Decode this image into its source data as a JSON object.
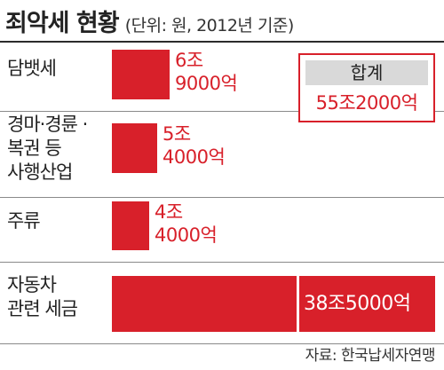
{
  "header": {
    "title": "죄악세 현황",
    "subtitle": "(단위: 원, 2012년 기준)"
  },
  "total": {
    "label": "합계",
    "value": "55조2000억"
  },
  "source": "자료: 한국납세자연맹",
  "colors": {
    "bar": "#d8202a",
    "total_header_bg": "#d9d9d9"
  },
  "chart_data": {
    "type": "bar",
    "orientation": "horizontal",
    "title": "죄악세 현황",
    "subtitle": "(단위: 원, 2012년 기준)",
    "categories": [
      [
        "담뱃세"
      ],
      [
        "경마·경륜 ·",
        "복권 등",
        "사행산업"
      ],
      [
        "주류"
      ],
      [
        "자동차",
        "관련 세금"
      ]
    ],
    "values": [
      69000,
      54000,
      44000,
      385000
    ],
    "value_unit": "억원",
    "value_labels": [
      [
        "6조",
        "9000억"
      ],
      [
        "5조",
        "4000억"
      ],
      [
        "4조",
        "4000억"
      ],
      [
        "38조5000억"
      ]
    ],
    "total": {
      "label": "합계",
      "value": "55조2000억"
    },
    "source": "자료: 한국납세자연맹",
    "grid": false,
    "legend": "none"
  }
}
